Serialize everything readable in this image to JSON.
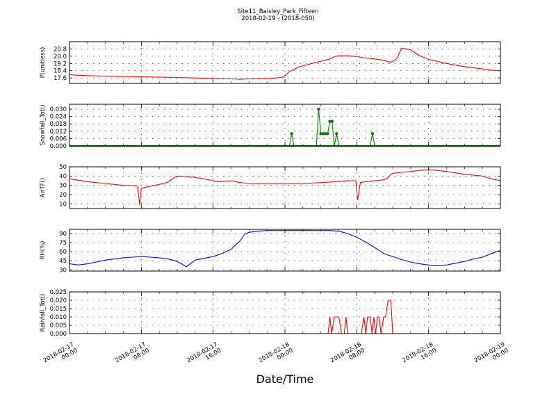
{
  "figure": {
    "title_line1": "Site11_Baisley_Park_Fifteen",
    "title_line2": "2018-02-19 - (2018-050)",
    "xlabel": "Date/Time",
    "x_tick_labels": [
      [
        "2018-02-17",
        "00:00"
      ],
      [
        "2018-02-17",
        "08:00"
      ],
      [
        "2018-02-17",
        "16:00"
      ],
      [
        "2018-02-18",
        "00:00"
      ],
      [
        "2018-02-18",
        "08:00"
      ],
      [
        "2018-02-18",
        "16:00"
      ],
      [
        "2018-02-19",
        "00:00"
      ]
    ]
  },
  "chart_data": [
    {
      "type": "line",
      "ylabel": "P(unitless)",
      "color": "#ff0000",
      "ylim": [
        17.0,
        21.6
      ],
      "yticks": [
        "17.6",
        "18.4",
        "19.2",
        "20.0",
        "20.8"
      ],
      "x_range_hours": [
        0,
        48
      ],
      "grid": true,
      "series": [
        {
          "x": [
            0,
            2,
            4,
            6,
            8,
            10,
            12,
            14,
            15,
            16,
            18,
            19,
            20,
            22,
            23,
            23.8,
            24.5,
            25.5,
            27,
            29,
            29.5,
            30,
            31,
            32,
            33,
            34,
            35,
            35.3,
            35.6,
            36,
            36.5,
            37,
            38,
            39,
            40,
            42,
            44,
            46,
            47,
            48
          ],
          "values": [
            17.95,
            17.85,
            17.8,
            17.75,
            17.72,
            17.7,
            17.65,
            17.6,
            17.57,
            17.52,
            17.5,
            17.45,
            17.5,
            17.55,
            17.6,
            17.7,
            18.3,
            18.8,
            19.2,
            19.7,
            19.95,
            20.05,
            20.05,
            19.95,
            19.8,
            19.7,
            19.55,
            19.45,
            19.35,
            19.4,
            19.8,
            20.9,
            20.7,
            20.05,
            19.65,
            19.2,
            18.85,
            18.6,
            18.45,
            18.4
          ]
        }
      ]
    },
    {
      "type": "line",
      "ylabel": "Snowfall_Tot()",
      "color": "#007f00",
      "ylim": [
        0,
        0.034
      ],
      "yticks": [
        "0.000",
        "0.006",
        "0.012",
        "0.018",
        "0.024",
        "0.030"
      ],
      "x_range_hours": [
        0,
        48
      ],
      "grid": true,
      "markers": true,
      "series": [
        {
          "x": [
            24.5,
            24.75,
            25,
            27.5,
            27.75,
            28,
            28.25,
            28.5,
            28.75,
            29,
            29.25,
            29.5,
            29.75,
            30,
            30.25,
            33.5,
            33.75,
            34
          ],
          "values": [
            0,
            0.01,
            0,
            0,
            0.03,
            0.01,
            0.01,
            0.01,
            0.01,
            0.02,
            0.02,
            0,
            0.01,
            0,
            0,
            0,
            0.01,
            0
          ]
        }
      ]
    },
    {
      "type": "line",
      "ylabel": "AirTF()",
      "color": "#ff0000",
      "ylim": [
        5,
        50
      ],
      "yticks": [
        "10",
        "20",
        "30",
        "40",
        "50"
      ],
      "x_range_hours": [
        0,
        48
      ],
      "grid": true,
      "series": [
        {
          "x": [
            0,
            1,
            2,
            3,
            4,
            5,
            6,
            7,
            7.6,
            7.8,
            8.0,
            8.5,
            9,
            10,
            11,
            11.3,
            11.8,
            12.3,
            13,
            14,
            15,
            16,
            16.5,
            17,
            18,
            19,
            20,
            22,
            24,
            26,
            28,
            30,
            31,
            31.6,
            31.9,
            32.1,
            32.4,
            33,
            34,
            35,
            35.5,
            35.8,
            36,
            37,
            38,
            39,
            40,
            41,
            42,
            44,
            46,
            47,
            48
          ],
          "values": [
            37,
            35.5,
            34,
            33,
            32,
            31,
            30,
            29.5,
            29,
            9,
            27,
            28,
            29,
            31,
            33.5,
            36,
            39,
            40,
            39.5,
            38.5,
            37,
            35,
            34,
            34,
            35,
            33,
            32,
            32,
            32,
            32,
            33,
            34,
            35,
            35,
            35,
            14,
            33,
            34,
            35,
            36,
            38,
            42,
            43,
            44,
            45,
            46,
            47,
            46,
            45,
            42,
            40,
            37,
            35
          ]
        }
      ]
    },
    {
      "type": "line",
      "ylabel": "RH(%)",
      "color": "#0000ff",
      "ylim": [
        28,
        97
      ],
      "yticks": [
        "30",
        "45",
        "60",
        "75",
        "90"
      ],
      "x_range_hours": [
        0,
        48
      ],
      "grid": true,
      "series": [
        {
          "x": [
            0,
            1,
            2,
            3,
            4,
            5,
            6,
            7,
            8,
            9,
            10,
            11,
            12,
            12.5,
            13,
            14,
            15,
            16,
            17,
            18,
            19,
            19.5,
            20,
            21,
            22,
            23,
            24,
            26,
            28,
            29,
            30,
            31,
            32,
            33,
            34,
            35,
            36,
            37,
            38,
            39,
            40,
            41,
            42,
            43,
            44,
            45,
            46,
            47,
            48
          ],
          "values": [
            40,
            38,
            40,
            43,
            46,
            48,
            50,
            51,
            52,
            51,
            50,
            48,
            44,
            40,
            35,
            46,
            49,
            52,
            57,
            64,
            78,
            89,
            92,
            94,
            95,
            95,
            95,
            95,
            95,
            95,
            94,
            90,
            84,
            76,
            67,
            57,
            52,
            47,
            43,
            40,
            38,
            37,
            38,
            41,
            44,
            48,
            51,
            57,
            62
          ]
        }
      ]
    },
    {
      "type": "line",
      "ylabel": "Rainfall_Tot()",
      "color": "#ff0000",
      "ylim": [
        0,
        0.025
      ],
      "yticks": [
        "0.000",
        "0.005",
        "0.010",
        "0.015",
        "0.020",
        "0.025"
      ],
      "x_range_hours": [
        0,
        48
      ],
      "grid": true,
      "series": [
        {
          "x": [
            0,
            28.8,
            29,
            29.2,
            29.5,
            29.7,
            30,
            30.3,
            30.6,
            30.8,
            31,
            31.2,
            32.5,
            32.8,
            33,
            33.2,
            33.5,
            33.7,
            33.9,
            34.1,
            34.3,
            34.5,
            34.7,
            35.0,
            35.2,
            35.5,
            35.8,
            36,
            36.3,
            48
          ],
          "values": [
            0,
            0,
            0.01,
            0,
            0.01,
            0.01,
            0.01,
            0,
            0,
            0.01,
            0,
            0,
            0,
            0.01,
            0,
            0.01,
            0.01,
            0,
            0.01,
            0,
            0.01,
            0.01,
            0,
            0.01,
            0.01,
            0.02,
            0.02,
            0,
            0,
            0
          ]
        }
      ]
    }
  ]
}
